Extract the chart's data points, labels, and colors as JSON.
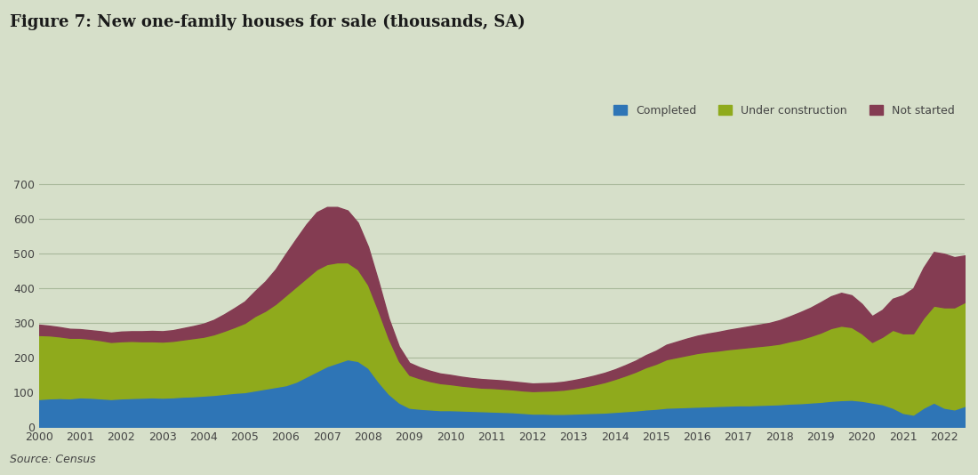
{
  "title": "Figure 7: New one-family houses for sale (thousands, SA)",
  "source_text": "Source: Census",
  "colors": {
    "completed": "#2e75b6",
    "under_construction": "#8faa1c",
    "not_started": "#843c52",
    "background": "#d6dfc9",
    "grid": "#a8b89a"
  },
  "legend_labels": [
    "Completed",
    "Under construction",
    "Not started"
  ],
  "years": [
    2000.0,
    2000.25,
    2000.5,
    2000.75,
    2001.0,
    2001.25,
    2001.5,
    2001.75,
    2002.0,
    2002.25,
    2002.5,
    2002.75,
    2003.0,
    2003.25,
    2003.5,
    2003.75,
    2004.0,
    2004.25,
    2004.5,
    2004.75,
    2005.0,
    2005.25,
    2005.5,
    2005.75,
    2006.0,
    2006.25,
    2006.5,
    2006.75,
    2007.0,
    2007.25,
    2007.5,
    2007.75,
    2008.0,
    2008.25,
    2008.5,
    2008.75,
    2009.0,
    2009.25,
    2009.5,
    2009.75,
    2010.0,
    2010.25,
    2010.5,
    2010.75,
    2011.0,
    2011.25,
    2011.5,
    2011.75,
    2012.0,
    2012.25,
    2012.5,
    2012.75,
    2013.0,
    2013.25,
    2013.5,
    2013.75,
    2014.0,
    2014.25,
    2014.5,
    2014.75,
    2015.0,
    2015.25,
    2015.5,
    2015.75,
    2016.0,
    2016.25,
    2016.5,
    2016.75,
    2017.0,
    2017.25,
    2017.5,
    2017.75,
    2018.0,
    2018.25,
    2018.5,
    2018.75,
    2019.0,
    2019.25,
    2019.5,
    2019.75,
    2020.0,
    2020.25,
    2020.5,
    2020.75,
    2021.0,
    2021.25,
    2021.5,
    2021.75,
    2022.0,
    2022.25,
    2022.5
  ],
  "completed": [
    80,
    82,
    83,
    82,
    85,
    84,
    82,
    80,
    82,
    83,
    84,
    85,
    84,
    85,
    87,
    88,
    90,
    92,
    95,
    98,
    100,
    105,
    110,
    115,
    120,
    130,
    145,
    160,
    175,
    185,
    195,
    190,
    170,
    130,
    95,
    70,
    55,
    52,
    50,
    48,
    48,
    47,
    46,
    45,
    44,
    43,
    42,
    40,
    38,
    38,
    37,
    37,
    38,
    39,
    40,
    41,
    43,
    45,
    47,
    50,
    52,
    55,
    56,
    57,
    58,
    59,
    60,
    61,
    62,
    62,
    63,
    64,
    65,
    67,
    68,
    70,
    72,
    75,
    77,
    78,
    75,
    70,
    65,
    55,
    40,
    35,
    55,
    70,
    55,
    50,
    60
  ],
  "under_construction": [
    185,
    182,
    178,
    175,
    172,
    170,
    168,
    165,
    165,
    165,
    163,
    162,
    162,
    163,
    165,
    168,
    170,
    175,
    182,
    190,
    200,
    215,
    225,
    240,
    260,
    275,
    285,
    295,
    295,
    290,
    280,
    265,
    240,
    205,
    160,
    120,
    95,
    88,
    82,
    78,
    75,
    72,
    70,
    68,
    68,
    67,
    66,
    65,
    65,
    66,
    68,
    70,
    73,
    77,
    82,
    88,
    95,
    103,
    112,
    122,
    130,
    140,
    145,
    150,
    155,
    158,
    160,
    163,
    165,
    168,
    170,
    172,
    175,
    180,
    185,
    192,
    200,
    210,
    215,
    210,
    195,
    175,
    195,
    225,
    230,
    235,
    260,
    280,
    290,
    295,
    300
  ],
  "not_started": [
    30,
    28,
    27,
    26,
    25,
    25,
    26,
    27,
    28,
    28,
    29,
    30,
    30,
    31,
    33,
    35,
    38,
    42,
    48,
    55,
    62,
    72,
    85,
    100,
    120,
    138,
    155,
    165,
    165,
    160,
    150,
    135,
    110,
    85,
    58,
    42,
    35,
    32,
    30,
    28,
    27,
    26,
    25,
    25,
    24,
    24,
    23,
    23,
    22,
    22,
    22,
    23,
    24,
    25,
    26,
    27,
    28,
    30,
    32,
    35,
    38,
    42,
    45,
    48,
    50,
    52,
    54,
    56,
    58,
    60,
    62,
    64,
    68,
    72,
    78,
    82,
    88,
    92,
    95,
    92,
    85,
    75,
    78,
    90,
    110,
    130,
    145,
    155,
    155,
    145,
    135
  ],
  "ylim": [
    0,
    750
  ],
  "yticks": [
    0,
    100,
    200,
    300,
    400,
    500,
    600,
    700
  ],
  "xtick_labels": [
    "2000",
    "2001",
    "2002",
    "2003",
    "2004",
    "2005",
    "2006",
    "2007",
    "2008",
    "2009",
    "2010",
    "2011",
    "2012",
    "2013",
    "2014",
    "2015",
    "2016",
    "2017",
    "2018",
    "2019",
    "2020",
    "2021",
    "2022"
  ],
  "xtick_positions": [
    2000,
    2001,
    2002,
    2003,
    2004,
    2005,
    2006,
    2007,
    2008,
    2009,
    2010,
    2011,
    2012,
    2013,
    2014,
    2015,
    2016,
    2017,
    2018,
    2019,
    2020,
    2021,
    2022
  ]
}
